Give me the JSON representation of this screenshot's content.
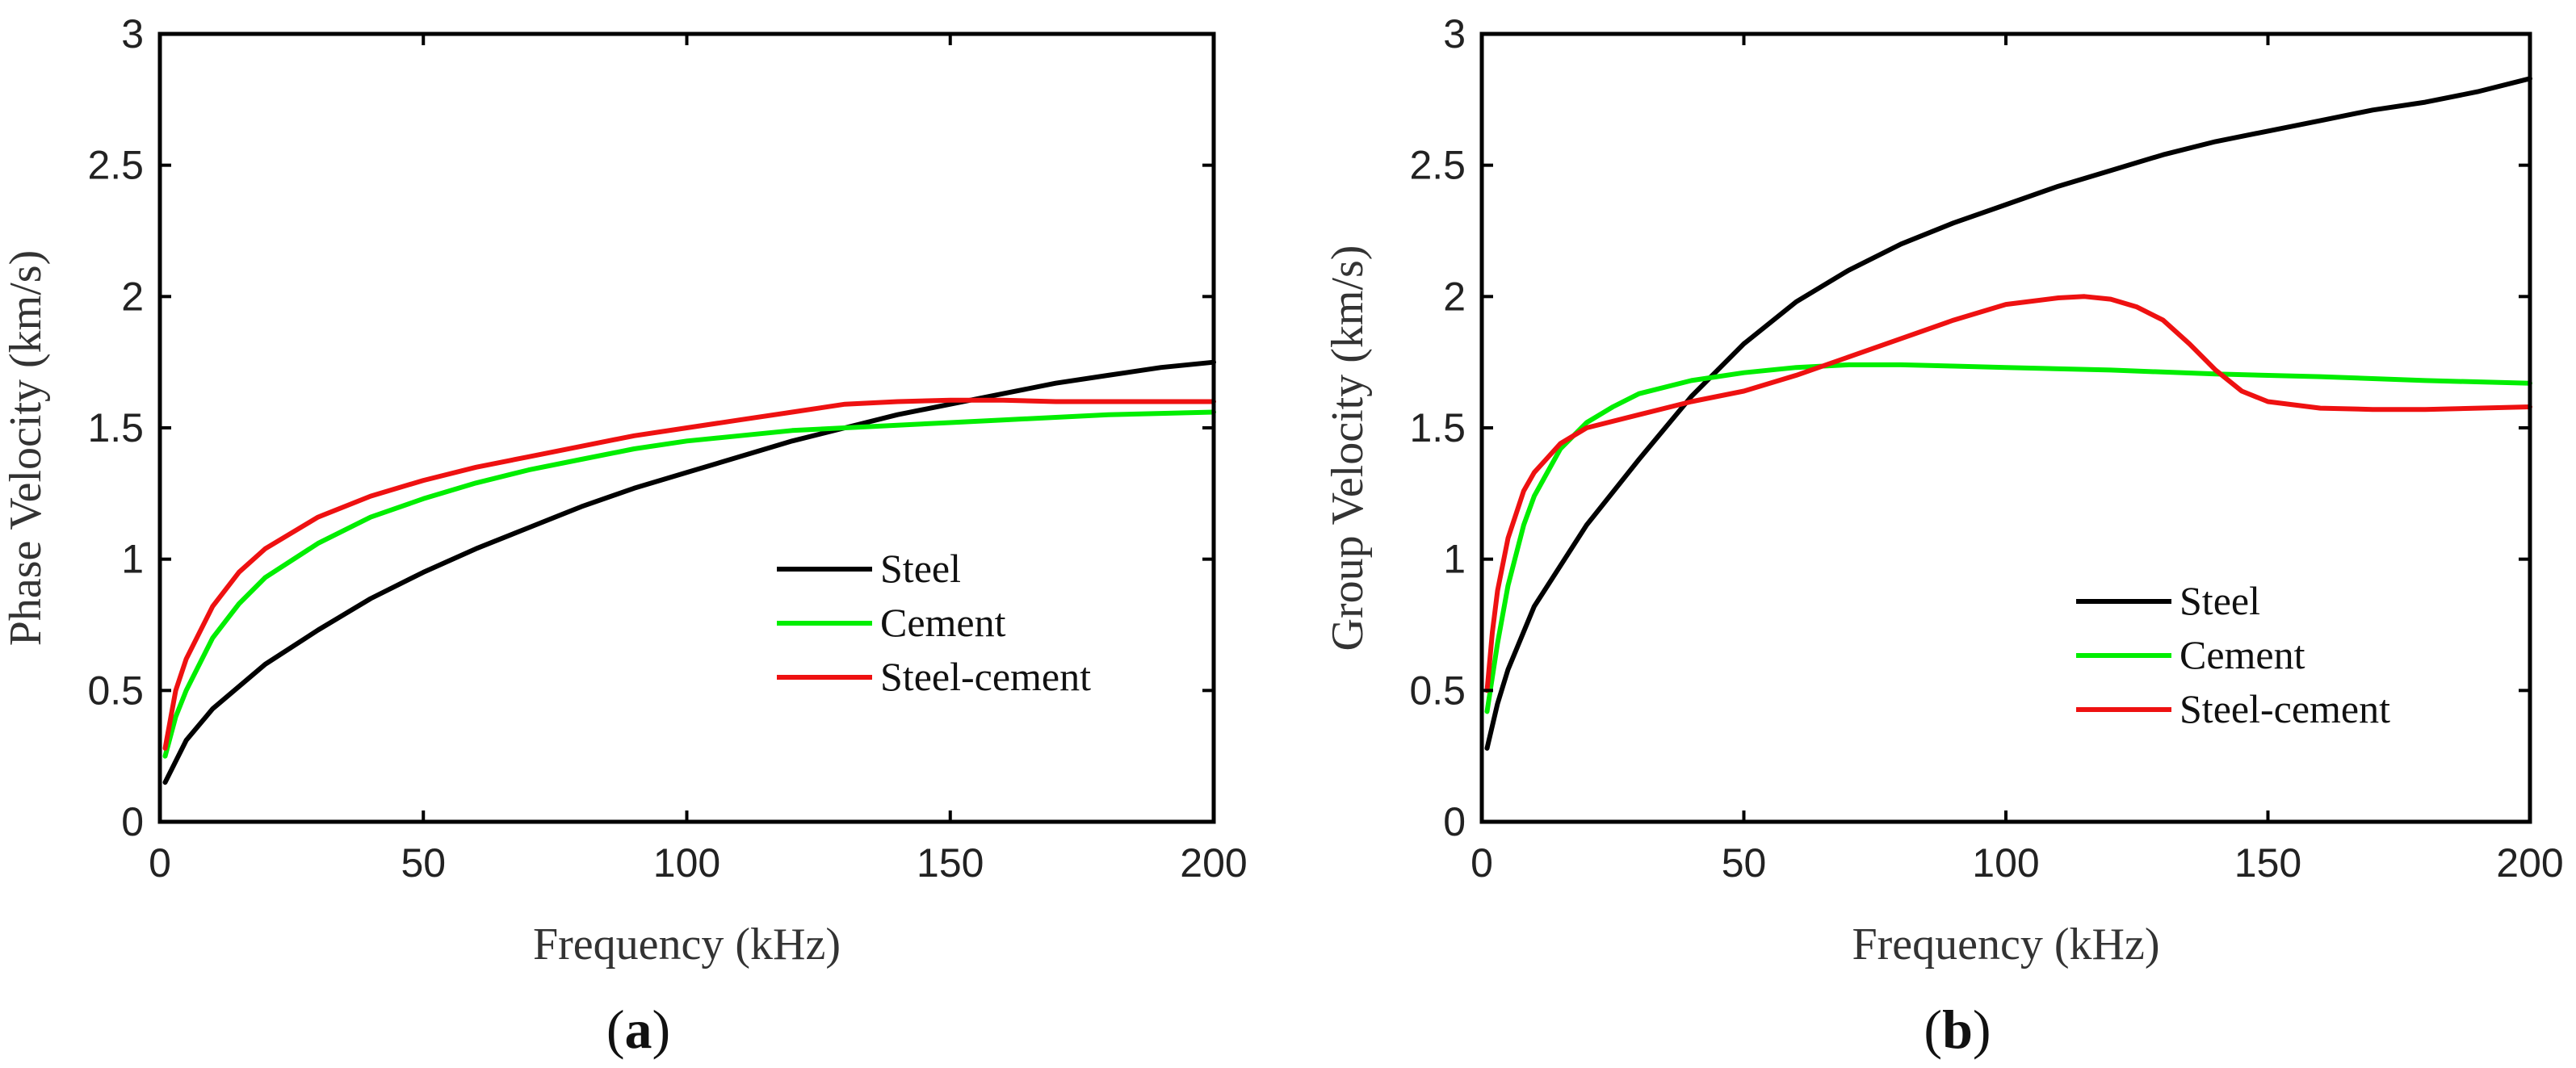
{
  "figure": {
    "panels": [
      {
        "label_open": "(",
        "label_letter": "a",
        "label_close": ")"
      },
      {
        "label_open": "(",
        "label_letter": "b",
        "label_close": ")"
      }
    ]
  },
  "chart_data": [
    {
      "type": "line",
      "title": "",
      "xlabel": "Frequency (kHz)",
      "ylabel": "Phase Velocity (km/s)",
      "xlim": [
        0,
        200
      ],
      "ylim": [
        0,
        3
      ],
      "xticks": [
        0,
        50,
        100,
        150,
        200
      ],
      "xtick_labels": [
        "0",
        "50",
        "100",
        "150",
        "200"
      ],
      "yticks": [
        0,
        0.5,
        1,
        1.5,
        2,
        2.5,
        3
      ],
      "ytick_labels": [
        "0",
        "0.5",
        "1",
        "1.5",
        "2",
        "2.5",
        "3"
      ],
      "grid": false,
      "legend_position": "center-right",
      "series": [
        {
          "name": "Steel",
          "color": "#000000",
          "x": [
            1,
            5,
            10,
            20,
            30,
            40,
            50,
            60,
            70,
            80,
            90,
            100,
            110,
            120,
            130,
            140,
            150,
            160,
            170,
            180,
            190,
            200
          ],
          "y": [
            0.15,
            0.31,
            0.43,
            0.6,
            0.73,
            0.85,
            0.95,
            1.04,
            1.12,
            1.2,
            1.27,
            1.33,
            1.39,
            1.45,
            1.5,
            1.55,
            1.59,
            1.63,
            1.67,
            1.7,
            1.73,
            1.75
          ]
        },
        {
          "name": "Cement",
          "color": "#00ee00",
          "x": [
            1,
            3,
            5,
            10,
            15,
            20,
            30,
            40,
            50,
            60,
            70,
            80,
            90,
            100,
            110,
            120,
            130,
            140,
            150,
            160,
            170,
            180,
            190,
            200
          ],
          "y": [
            0.25,
            0.4,
            0.5,
            0.7,
            0.83,
            0.93,
            1.06,
            1.16,
            1.23,
            1.29,
            1.34,
            1.38,
            1.42,
            1.45,
            1.47,
            1.49,
            1.5,
            1.51,
            1.52,
            1.53,
            1.54,
            1.55,
            1.555,
            1.56
          ]
        },
        {
          "name": "Steel-cement",
          "color": "#ee1111",
          "x": [
            1,
            3,
            5,
            10,
            15,
            20,
            30,
            40,
            50,
            60,
            70,
            80,
            90,
            100,
            110,
            120,
            130,
            140,
            150,
            160,
            170,
            180,
            190,
            200
          ],
          "y": [
            0.28,
            0.5,
            0.62,
            0.82,
            0.95,
            1.04,
            1.16,
            1.24,
            1.3,
            1.35,
            1.39,
            1.43,
            1.47,
            1.5,
            1.53,
            1.56,
            1.59,
            1.6,
            1.605,
            1.605,
            1.6,
            1.6,
            1.6,
            1.6
          ]
        }
      ]
    },
    {
      "type": "line",
      "title": "",
      "xlabel": "Frequency (kHz)",
      "ylabel": "Group Velocity (km/s)",
      "xlim": [
        0,
        200
      ],
      "ylim": [
        0,
        3
      ],
      "xticks": [
        0,
        50,
        100,
        150,
        200
      ],
      "xtick_labels": [
        "0",
        "50",
        "100",
        "150",
        "200"
      ],
      "yticks": [
        0,
        0.5,
        1,
        1.5,
        2,
        2.5,
        3
      ],
      "ytick_labels": [
        "0",
        "0.5",
        "1",
        "1.5",
        "2",
        "2.5",
        "3"
      ],
      "grid": false,
      "legend_position": "center-right",
      "series": [
        {
          "name": "Steel",
          "color": "#000000",
          "x": [
            1,
            3,
            5,
            10,
            20,
            30,
            40,
            50,
            60,
            70,
            80,
            90,
            100,
            110,
            120,
            130,
            140,
            150,
            160,
            170,
            180,
            190,
            200
          ],
          "y": [
            0.28,
            0.45,
            0.58,
            0.82,
            1.13,
            1.38,
            1.62,
            1.82,
            1.98,
            2.1,
            2.2,
            2.28,
            2.35,
            2.42,
            2.48,
            2.54,
            2.59,
            2.63,
            2.67,
            2.71,
            2.74,
            2.78,
            2.83
          ]
        },
        {
          "name": "Cement",
          "color": "#00ee00",
          "x": [
            1,
            2,
            3,
            5,
            8,
            10,
            15,
            20,
            25,
            30,
            40,
            50,
            60,
            70,
            80,
            90,
            100,
            120,
            140,
            160,
            180,
            200
          ],
          "y": [
            0.42,
            0.55,
            0.68,
            0.9,
            1.13,
            1.24,
            1.42,
            1.52,
            1.58,
            1.63,
            1.68,
            1.71,
            1.73,
            1.74,
            1.74,
            1.735,
            1.73,
            1.72,
            1.705,
            1.695,
            1.68,
            1.67
          ]
        },
        {
          "name": "Steel-cement",
          "color": "#ee1111",
          "x": [
            1,
            2,
            3,
            5,
            8,
            10,
            15,
            20,
            30,
            40,
            50,
            60,
            70,
            80,
            90,
            100,
            110,
            115,
            120,
            125,
            130,
            135,
            140,
            145,
            150,
            160,
            170,
            180,
            190,
            200
          ],
          "y": [
            0.5,
            0.72,
            0.88,
            1.08,
            1.26,
            1.33,
            1.44,
            1.5,
            1.55,
            1.6,
            1.64,
            1.7,
            1.77,
            1.84,
            1.91,
            1.97,
            1.995,
            2.0,
            1.99,
            1.96,
            1.91,
            1.82,
            1.72,
            1.64,
            1.6,
            1.575,
            1.57,
            1.57,
            1.575,
            1.58
          ]
        }
      ]
    }
  ]
}
